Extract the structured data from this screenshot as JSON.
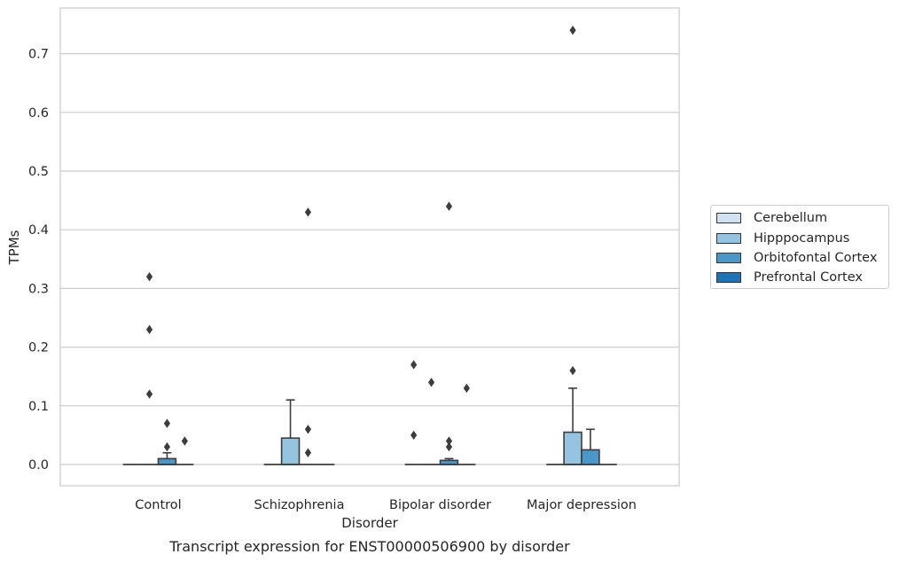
{
  "chart_data": {
    "type": "box",
    "title": "Transcript expression for ENST00000506900 by disorder",
    "xlabel": "Disorder",
    "ylabel": "TPMs",
    "ylim": [
      -0.035,
      0.78
    ],
    "yticks": [
      0.0,
      0.1,
      0.2,
      0.3,
      0.4,
      0.5,
      0.6,
      0.7
    ],
    "ytick_labels": [
      "0.0",
      "0.1",
      "0.2",
      "0.3",
      "0.4",
      "0.5",
      "0.6",
      "0.7"
    ],
    "grid": "horizontal",
    "legend_position": "right",
    "categories": [
      "Control",
      "Schizophrenia",
      "Bipolar disorder",
      "Major depression"
    ],
    "series": [
      {
        "name": "Cerebellum",
        "color": "#d0e1f2",
        "boxes": [
          {
            "q1": 0,
            "median": 0,
            "q3": 0,
            "whisker_low": 0,
            "whisker_high": 0,
            "outliers": []
          },
          {
            "q1": 0,
            "median": 0,
            "q3": 0,
            "whisker_low": 0,
            "whisker_high": 0,
            "outliers": []
          },
          {
            "q1": 0,
            "median": 0,
            "q3": 0,
            "whisker_low": 0,
            "whisker_high": 0,
            "outliers": [
              0.05,
              0.17
            ]
          },
          {
            "q1": 0,
            "median": 0,
            "q3": 0,
            "whisker_low": 0,
            "whisker_high": 0,
            "outliers": []
          }
        ]
      },
      {
        "name": "Hipppocampus",
        "color": "#94c4df",
        "boxes": [
          {
            "q1": 0,
            "median": 0,
            "q3": 0,
            "whisker_low": 0,
            "whisker_high": 0,
            "outliers": [
              0.12,
              0.23,
              0.32
            ]
          },
          {
            "q1": 0,
            "median": 0,
            "q3": 0.045,
            "whisker_low": 0,
            "whisker_high": 0.11,
            "outliers": []
          },
          {
            "q1": 0,
            "median": 0,
            "q3": 0,
            "whisker_low": 0,
            "whisker_high": 0,
            "outliers": [
              0.14
            ]
          },
          {
            "q1": 0,
            "median": 0,
            "q3": 0.055,
            "whisker_low": 0,
            "whisker_high": 0.13,
            "outliers": [
              0.16,
              0.74
            ]
          }
        ]
      },
      {
        "name": "Orbitofontal Cortex",
        "color": "#4a98c9",
        "boxes": [
          {
            "q1": 0,
            "median": 0,
            "q3": 0.01,
            "whisker_low": 0,
            "whisker_high": 0.02,
            "outliers": [
              0.03,
              0.07
            ]
          },
          {
            "q1": 0,
            "median": 0,
            "q3": 0,
            "whisker_low": 0,
            "whisker_high": 0,
            "outliers": [
              0.02,
              0.06,
              0.43
            ]
          },
          {
            "q1": 0,
            "median": 0,
            "q3": 0.007,
            "whisker_low": 0,
            "whisker_high": 0.01,
            "outliers": [
              0.03,
              0.04,
              0.44
            ]
          },
          {
            "q1": 0,
            "median": 0,
            "q3": 0.025,
            "whisker_low": 0,
            "whisker_high": 0.06,
            "outliers": []
          }
        ]
      },
      {
        "name": "Prefrontal Cortex",
        "color": "#2171b5",
        "boxes": [
          {
            "q1": 0,
            "median": 0,
            "q3": 0,
            "whisker_low": 0,
            "whisker_high": 0,
            "outliers": [
              0.04
            ]
          },
          {
            "q1": 0,
            "median": 0,
            "q3": 0,
            "whisker_low": 0,
            "whisker_high": 0,
            "outliers": []
          },
          {
            "q1": 0,
            "median": 0,
            "q3": 0,
            "whisker_low": 0,
            "whisker_high": 0,
            "outliers": [
              0.13
            ]
          },
          {
            "q1": 0,
            "median": 0,
            "q3": 0,
            "whisker_low": 0,
            "whisker_high": 0,
            "outliers": []
          }
        ]
      }
    ]
  },
  "legend": {
    "items": [
      {
        "label": "Cerebellum",
        "color": "#d0e1f2"
      },
      {
        "label": "Hipppocampus",
        "color": "#94c4df"
      },
      {
        "label": "Orbitofontal Cortex",
        "color": "#4a98c9"
      },
      {
        "label": "Prefrontal Cortex",
        "color": "#2171b5"
      }
    ]
  }
}
